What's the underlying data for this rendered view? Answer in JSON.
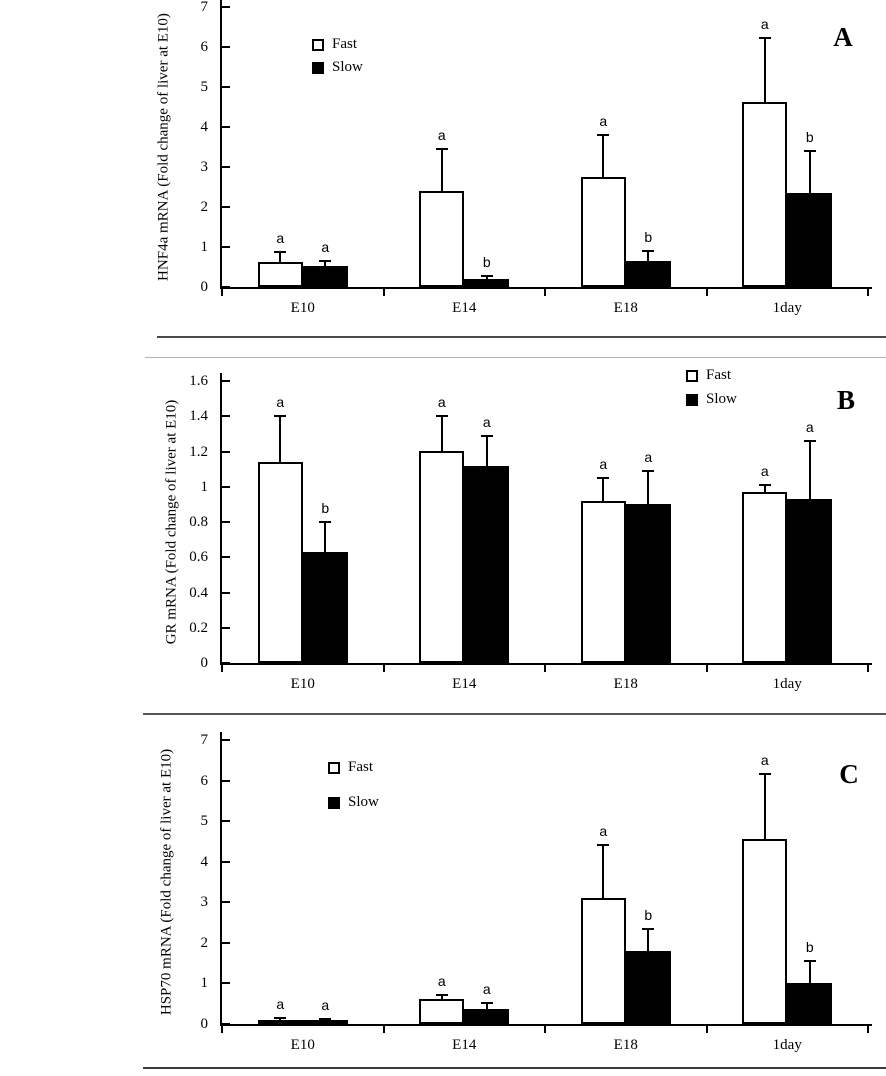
{
  "figure": {
    "background": "#ffffff",
    "bar_border_color": "#000000",
    "fast_fill": "#ffffff",
    "slow_fill": "#000000",
    "divider_color": "#4a4a4a"
  },
  "chart_data": [
    {
      "type": "bar",
      "panel_letter": "A",
      "title": "",
      "xlabel": "",
      "ylabel": "HNF4a mRNA (Fold change of liver at E10)",
      "categories": [
        "E10",
        "E14",
        "E18",
        "1day"
      ],
      "ylim": [
        0,
        7
      ],
      "yticks": [
        "0",
        "1",
        "2",
        "3",
        "4",
        "5",
        "6",
        "7"
      ],
      "grid": false,
      "legend_position": "upper-center-left",
      "legend": [
        "Fast",
        "Slow"
      ],
      "series": [
        {
          "name": "Fast",
          "fill": "#ffffff",
          "values": [
            0.62,
            2.4,
            2.75,
            4.62
          ],
          "errors": [
            0.26,
            1.05,
            1.05,
            1.6
          ],
          "sig_letters": [
            "a",
            "a",
            "a",
            "a"
          ]
        },
        {
          "name": "Slow",
          "fill": "#000000",
          "values": [
            0.52,
            0.2,
            0.65,
            2.35
          ],
          "errors": [
            0.13,
            0.08,
            0.25,
            1.05
          ],
          "sig_letters": [
            "a",
            "b",
            "b",
            "b"
          ]
        }
      ]
    },
    {
      "type": "bar",
      "panel_letter": "B",
      "title": "",
      "xlabel": "",
      "ylabel": "GR mRNA (Fold change of liver at E10)",
      "categories": [
        "E10",
        "E14",
        "E18",
        "1day"
      ],
      "ylim": [
        0,
        1.6
      ],
      "yticks": [
        "0",
        "0.2",
        "0.4",
        "0.6",
        "0.8",
        "1",
        "1.2",
        "1.4",
        "1.6"
      ],
      "grid": false,
      "legend_position": "upper-right",
      "legend": [
        "Fast",
        "Slow"
      ],
      "series": [
        {
          "name": "Fast",
          "fill": "#ffffff",
          "values": [
            1.14,
            1.2,
            0.92,
            0.97
          ],
          "errors": [
            0.26,
            0.2,
            0.13,
            0.04
          ],
          "sig_letters": [
            "a",
            "a",
            "a",
            "a"
          ]
        },
        {
          "name": "Slow",
          "fill": "#000000",
          "values": [
            0.63,
            1.12,
            0.9,
            0.93
          ],
          "errors": [
            0.17,
            0.17,
            0.19,
            0.33
          ],
          "sig_letters": [
            "b",
            "a",
            "a",
            "a"
          ]
        }
      ]
    },
    {
      "type": "bar",
      "panel_letter": "C",
      "title": "",
      "xlabel": "",
      "ylabel": "HSP70 mRNA (Fold change of liver at E10)",
      "categories": [
        "E10",
        "E14",
        "E18",
        "1day"
      ],
      "ylim": [
        0,
        7
      ],
      "yticks": [
        "0",
        "1",
        "2",
        "3",
        "4",
        "5",
        "6",
        "7"
      ],
      "grid": false,
      "legend_position": "upper-center-left",
      "legend": [
        "Fast",
        "Slow"
      ],
      "series": [
        {
          "name": "Fast",
          "fill": "#ffffff",
          "values": [
            0.1,
            0.62,
            3.1,
            4.55
          ],
          "errors": [
            0.05,
            0.1,
            1.3,
            1.6
          ],
          "sig_letters": [
            "a",
            "a",
            "a",
            "a"
          ]
        },
        {
          "name": "Slow",
          "fill": "#000000",
          "values": [
            0.09,
            0.38,
            1.8,
            1.0
          ],
          "errors": [
            0.04,
            0.13,
            0.55,
            0.55
          ],
          "sig_letters": [
            "a",
            "a",
            "b",
            "b"
          ]
        }
      ]
    }
  ]
}
